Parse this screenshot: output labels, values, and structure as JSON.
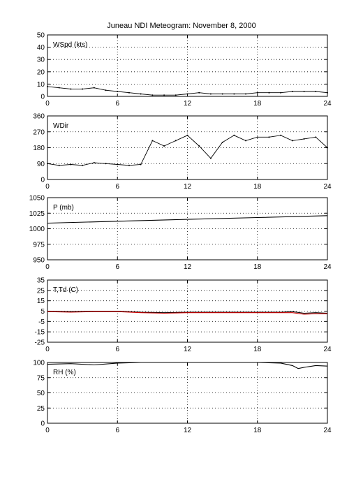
{
  "figure": {
    "title": "Juneau NDI Meteogram:  November  8, 2000"
  },
  "chart_data": [
    {
      "type": "scatter",
      "panel_label": "WSpd (kts)",
      "xlim": [
        0,
        24
      ],
      "ylim": [
        0,
        50
      ],
      "xticks": [
        0,
        6,
        12,
        18,
        24
      ],
      "yticks": [
        0,
        10,
        20,
        30,
        40,
        50
      ],
      "grid": "dotted",
      "series": [
        {
          "color": "#000000",
          "x": [
            0,
            1,
            2,
            3,
            4,
            5,
            6,
            7,
            8,
            9,
            10,
            11,
            12,
            13,
            14,
            15,
            16,
            17,
            18,
            19,
            20,
            21,
            22,
            23,
            24
          ],
          "y": [
            8,
            7,
            6,
            6,
            7,
            5,
            4,
            3,
            2,
            1,
            1,
            1,
            2,
            3,
            2,
            2,
            2,
            2,
            3,
            3,
            3,
            4,
            4,
            4,
            3
          ]
        }
      ]
    },
    {
      "type": "scatter",
      "panel_label": "WDir",
      "xlim": [
        0,
        24
      ],
      "ylim": [
        0,
        360
      ],
      "xticks": [
        0,
        6,
        12,
        18,
        24
      ],
      "yticks": [
        0,
        90,
        180,
        270,
        360
      ],
      "grid": "dotted",
      "series": [
        {
          "color": "#000000",
          "x": [
            0,
            1,
            2,
            3,
            4,
            5,
            6,
            7,
            8,
            9,
            10,
            11,
            12,
            13,
            14,
            15,
            16,
            17,
            18,
            19,
            20,
            21,
            22,
            23,
            24
          ],
          "y": [
            90,
            80,
            85,
            80,
            95,
            90,
            85,
            80,
            85,
            220,
            190,
            220,
            250,
            190,
            120,
            210,
            250,
            220,
            240,
            240,
            250,
            220,
            230,
            240,
            180
          ]
        }
      ]
    },
    {
      "type": "line",
      "panel_label": "P (mb)",
      "xlim": [
        0,
        24
      ],
      "ylim": [
        950,
        1050
      ],
      "xticks": [
        0,
        6,
        12,
        18,
        24
      ],
      "yticks": [
        950,
        975,
        1000,
        1025,
        1050
      ],
      "grid": "dotted",
      "series": [
        {
          "color": "#000000",
          "x": [
            0,
            6,
            12,
            18,
            24
          ],
          "y": [
            1009,
            1012,
            1015,
            1018,
            1021
          ]
        }
      ]
    },
    {
      "type": "line",
      "panel_label": "T,Td (C)",
      "xlim": [
        0,
        24
      ],
      "ylim": [
        -25,
        35
      ],
      "xticks": [
        0,
        6,
        12,
        18,
        24
      ],
      "yticks": [
        -25,
        -15,
        -5,
        5,
        15,
        25,
        35
      ],
      "grid": "dotted",
      "series": [
        {
          "color": "#000000",
          "x": [
            0,
            2,
            4,
            6,
            8,
            10,
            12,
            14,
            16,
            18,
            20,
            21,
            22,
            23,
            24
          ],
          "y": [
            5,
            4.5,
            5,
            5,
            4,
            3.5,
            4,
            4,
            4,
            4,
            4,
            4.5,
            3,
            3.5,
            3
          ]
        },
        {
          "color": "#cc0000",
          "x": [
            0,
            2,
            4,
            6,
            8,
            10,
            12,
            14,
            16,
            18,
            20,
            21,
            22,
            23,
            24
          ],
          "y": [
            4.5,
            4,
            4.5,
            4.5,
            3.5,
            3,
            3.5,
            3.5,
            3.5,
            3.5,
            3.5,
            3.5,
            2,
            2.5,
            2.5
          ]
        }
      ]
    },
    {
      "type": "line",
      "panel_label": "RH (%)",
      "xlim": [
        0,
        24
      ],
      "ylim": [
        0,
        100
      ],
      "xticks": [
        0,
        6,
        12,
        18,
        24
      ],
      "yticks": [
        0,
        25,
        50,
        75,
        100
      ],
      "grid": "dotted",
      "series": [
        {
          "color": "#000000",
          "x": [
            0,
            2,
            4,
            6,
            8,
            10,
            12,
            14,
            16,
            18,
            20,
            21,
            21.5,
            22,
            23,
            24
          ],
          "y": [
            97,
            98,
            96,
            99,
            100,
            100,
            100,
            100,
            100,
            100,
            99,
            95,
            90,
            92,
            95,
            94
          ]
        }
      ]
    }
  ]
}
